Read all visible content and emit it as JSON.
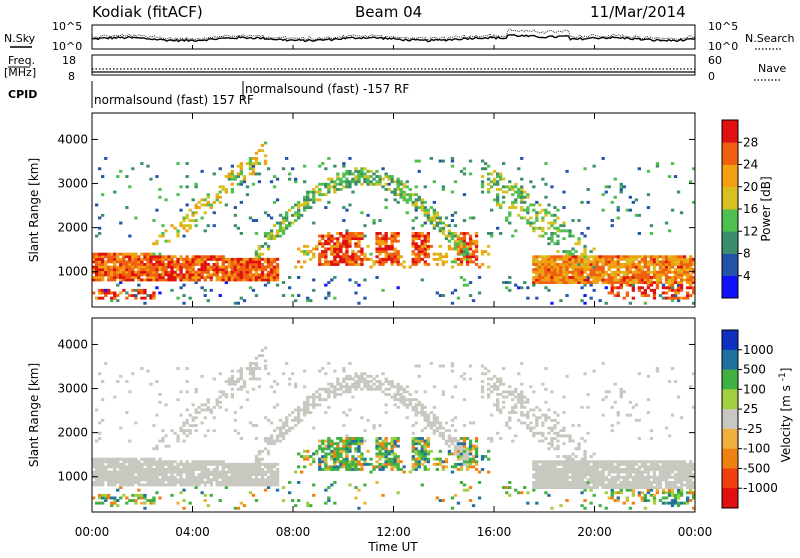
{
  "header": {
    "station": "Kodiak (fitACF)",
    "beam": "Beam 04",
    "date": "11/Mar/2014"
  },
  "noise_panel": {
    "left_label": "N.Sky",
    "right_label": "N.Search",
    "left_ticks": [
      "10^5",
      "10^0"
    ],
    "right_ticks": [
      "10^5",
      "10^0"
    ]
  },
  "freq_panel": {
    "left_label_1": "Freq.",
    "left_label_2": "[MHz]",
    "left_ticks": [
      "18",
      "8"
    ],
    "right_label": "Nave",
    "right_ticks": [
      "60",
      "0"
    ]
  },
  "cpid_panel": {
    "label": "CPID",
    "modes": [
      {
        "name": "normalsound (fast) 157 RF",
        "start_hour": 0.0
      },
      {
        "name": "normalsound (fast) -157 RF",
        "start_hour": 6.5
      }
    ]
  },
  "colors": {
    "power_scale": [
      "#1010ff",
      "#2255aa",
      "#3a8f6a",
      "#4fbf4f",
      "#d8c020",
      "#f0a010",
      "#f06010",
      "#e01010"
    ],
    "velocity_scale": [
      "#e01010",
      "#f04010",
      "#f08010",
      "#f0b040",
      "#c8c8c0",
      "#a0d040",
      "#40b040",
      "#2070a0",
      "#1030c0"
    ],
    "ground_scatter": "#c8c8c0"
  },
  "chart_data": [
    {
      "type": "heatmap",
      "title": "",
      "xlabel": "",
      "ylabel": "Slant Range [km]",
      "x_ticks": [
        "00:00",
        "04:00",
        "08:00",
        "12:00",
        "16:00",
        "20:00",
        "00:00"
      ],
      "y_ticks": [
        1000,
        2000,
        3000,
        4000
      ],
      "ylim": [
        200,
        4600
      ],
      "xlim_hours": [
        0,
        24
      ],
      "colorbar": {
        "label": "Power [dB]",
        "ticks": [
          4,
          8,
          12,
          16,
          20,
          24,
          28
        ],
        "range": [
          0,
          32
        ]
      }
    },
    {
      "type": "heatmap",
      "title": "",
      "xlabel": "Time UT",
      "ylabel": "Slant Range [km]",
      "x_ticks": [
        "00:00",
        "04:00",
        "08:00",
        "12:00",
        "16:00",
        "20:00",
        "00:00"
      ],
      "y_ticks": [
        1000,
        2000,
        3000,
        4000
      ],
      "ylim": [
        200,
        4600
      ],
      "xlim_hours": [
        0,
        24
      ],
      "colorbar": {
        "label": "Velocity [m s^-1]",
        "ticks": [
          1000,
          500,
          100,
          25,
          -25,
          -100,
          -500,
          -1000
        ]
      }
    }
  ]
}
